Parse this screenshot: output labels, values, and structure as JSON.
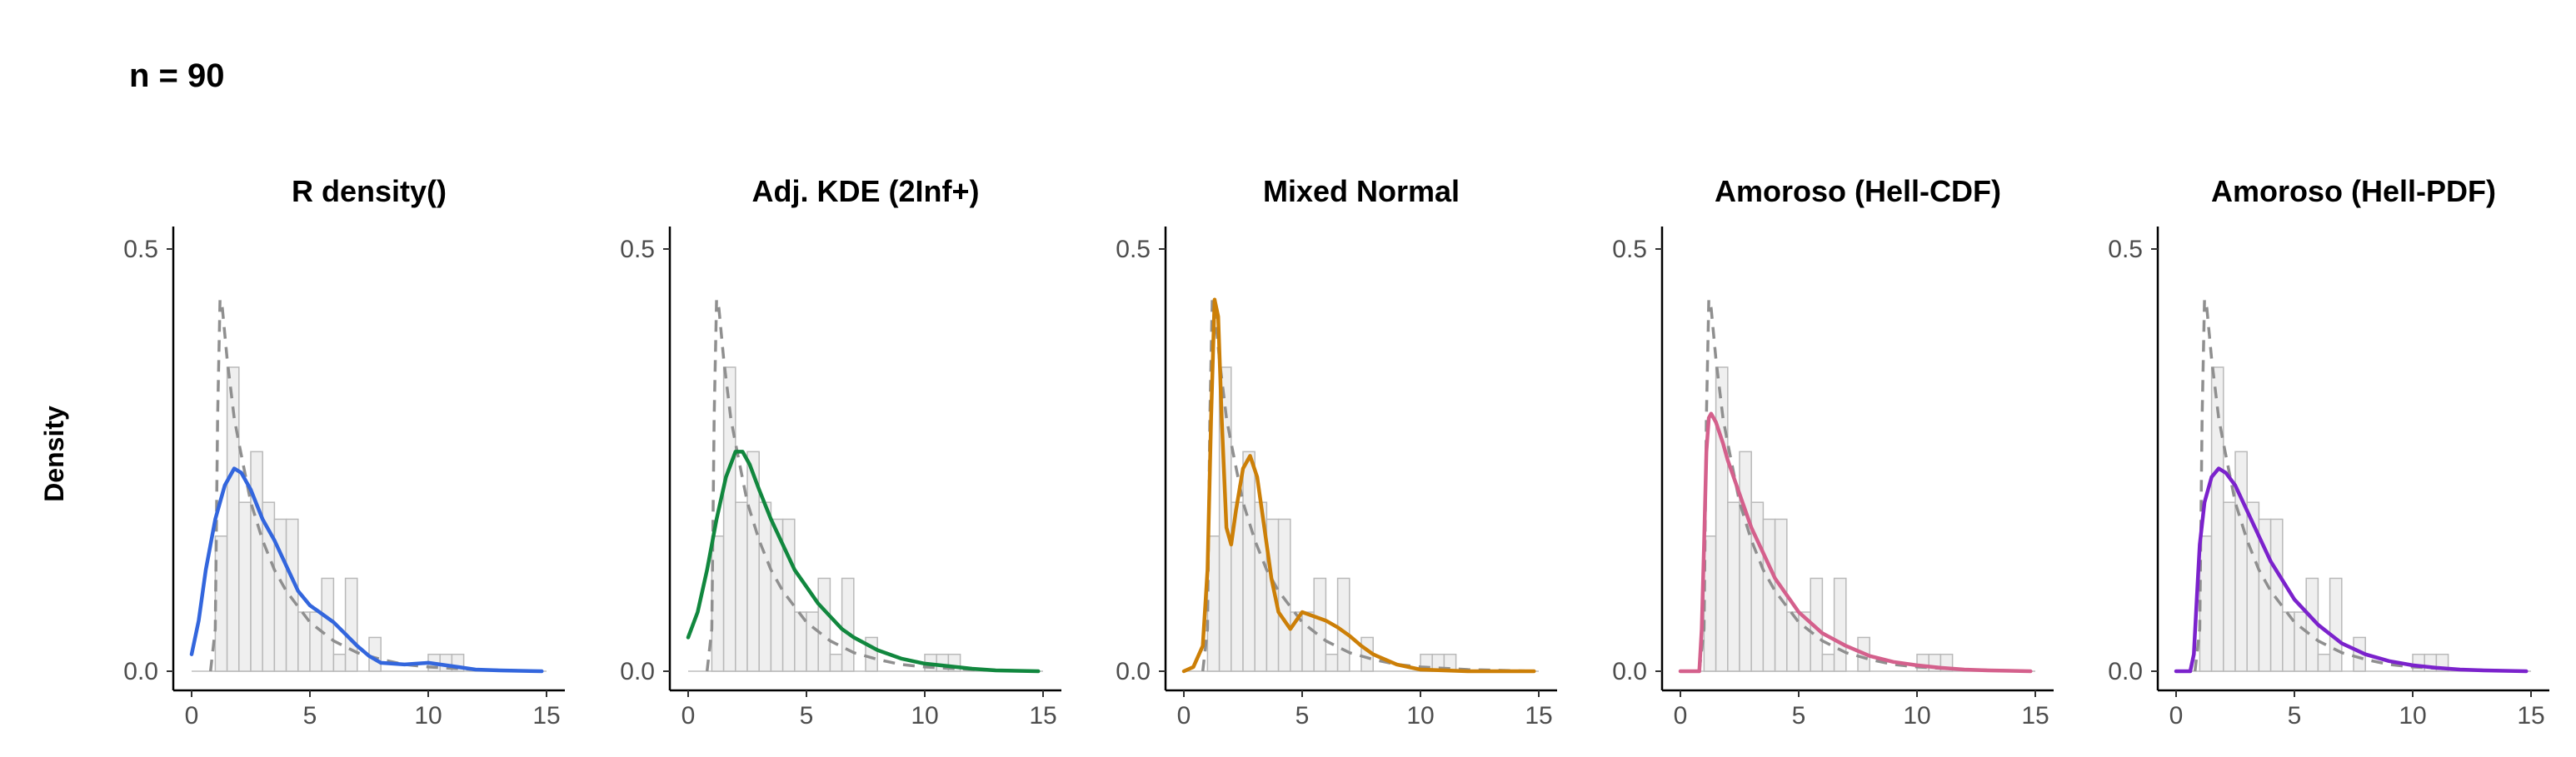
{
  "figure": {
    "title": "n = 90",
    "ylabel": "Density"
  },
  "chart_data": [
    {
      "type": "line",
      "title": "R density()",
      "color": "#3366dd",
      "curve": "rdensity",
      "xlim": [
        0,
        15
      ],
      "ylim": [
        0,
        0.5
      ],
      "xticks": [
        0,
        5,
        10,
        15
      ],
      "yticks": [
        0.0,
        0.5
      ],
      "ytick_labels": [
        "0.0",
        "0.5"
      ],
      "grid": false,
      "series": [
        {
          "kind": "histogram",
          "bin_width": 0.5,
          "bin_start": 1,
          "values": [
            0.16,
            0.36,
            0.2,
            0.26,
            0.2,
            0.18,
            0.18,
            0.07,
            0.07,
            0.11,
            0.02,
            0.11,
            0.0,
            0.04,
            0.0,
            0.0,
            0.0,
            0.0,
            0.02,
            0.02,
            0.02
          ]
        },
        {
          "kind": "true-density-dashed",
          "x": [
            0.8,
            1.0,
            1.1,
            1.2,
            1.3,
            1.5,
            1.8,
            2,
            2.5,
            3,
            3.5,
            4,
            5,
            6,
            7,
            8,
            9,
            10,
            12,
            14.8
          ],
          "y": [
            0,
            0.05,
            0.3,
            0.44,
            0.43,
            0.37,
            0.3,
            0.27,
            0.2,
            0.155,
            0.12,
            0.095,
            0.058,
            0.036,
            0.022,
            0.014,
            0.008,
            0.005,
            0.002,
            0.0
          ]
        },
        {
          "kind": "estimate",
          "x": [
            0,
            0.3,
            0.6,
            1,
            1.4,
            1.8,
            2.1,
            2.5,
            3,
            3.5,
            4,
            4.5,
            5,
            5.5,
            6,
            6.5,
            7,
            7.5,
            8,
            9,
            10,
            11,
            12,
            13,
            14.8
          ],
          "y": [
            0.02,
            0.06,
            0.12,
            0.18,
            0.22,
            0.24,
            0.235,
            0.215,
            0.18,
            0.155,
            0.125,
            0.095,
            0.078,
            0.068,
            0.058,
            0.044,
            0.03,
            0.018,
            0.01,
            0.008,
            0.01,
            0.006,
            0.002,
            0.001,
            0.0
          ]
        }
      ]
    },
    {
      "type": "line",
      "title": "Adj. KDE (2Inf+)",
      "color": "#11873e",
      "curve": "adjkde",
      "xlim": [
        0,
        15
      ],
      "ylim": [
        0,
        0.5
      ],
      "xticks": [
        0,
        5,
        10,
        15
      ],
      "yticks": [
        0.0,
        0.5
      ],
      "ytick_labels": [
        "0.0",
        "0.5"
      ],
      "grid": false,
      "series": [
        {
          "kind": "histogram",
          "bin_width": 0.5,
          "bin_start": 1,
          "values": [
            0.16,
            0.36,
            0.2,
            0.26,
            0.2,
            0.18,
            0.18,
            0.07,
            0.07,
            0.11,
            0.02,
            0.11,
            0.0,
            0.04,
            0.0,
            0.0,
            0.0,
            0.0,
            0.02,
            0.02,
            0.02
          ]
        },
        {
          "kind": "true-density-dashed",
          "x": [
            0.8,
            1.0,
            1.1,
            1.2,
            1.3,
            1.5,
            1.8,
            2,
            2.5,
            3,
            3.5,
            4,
            5,
            6,
            7,
            8,
            9,
            10,
            12,
            14.8
          ],
          "y": [
            0,
            0.05,
            0.3,
            0.44,
            0.43,
            0.37,
            0.3,
            0.27,
            0.2,
            0.155,
            0.12,
            0.095,
            0.058,
            0.036,
            0.022,
            0.014,
            0.008,
            0.005,
            0.002,
            0.0
          ]
        },
        {
          "kind": "estimate",
          "x": [
            0,
            0.4,
            0.8,
            1.2,
            1.6,
            2,
            2.3,
            2.6,
            3,
            3.5,
            4,
            4.5,
            5,
            5.5,
            6,
            6.5,
            7,
            8,
            9,
            10,
            11,
            12,
            13,
            14.8
          ],
          "y": [
            0.04,
            0.07,
            0.12,
            0.18,
            0.23,
            0.26,
            0.26,
            0.245,
            0.215,
            0.18,
            0.15,
            0.12,
            0.1,
            0.08,
            0.065,
            0.05,
            0.04,
            0.025,
            0.015,
            0.009,
            0.006,
            0.003,
            0.001,
            0.0
          ]
        }
      ]
    },
    {
      "type": "line",
      "title": "Mixed Normal",
      "color": "#cc7f07",
      "curve": "mixed",
      "xlim": [
        0,
        15
      ],
      "ylim": [
        0,
        0.5
      ],
      "xticks": [
        0,
        5,
        10,
        15
      ],
      "yticks": [
        0.0,
        0.5
      ],
      "ytick_labels": [
        "0.0",
        "0.5"
      ],
      "grid": false,
      "series": [
        {
          "kind": "histogram",
          "bin_width": 0.5,
          "bin_start": 1,
          "values": [
            0.16,
            0.36,
            0.2,
            0.26,
            0.2,
            0.18,
            0.18,
            0.07,
            0.07,
            0.11,
            0.02,
            0.11,
            0.0,
            0.04,
            0.0,
            0.0,
            0.0,
            0.0,
            0.02,
            0.02,
            0.02
          ]
        },
        {
          "kind": "true-density-dashed",
          "x": [
            0.8,
            1.0,
            1.1,
            1.2,
            1.3,
            1.5,
            1.8,
            2,
            2.5,
            3,
            3.5,
            4,
            5,
            6,
            7,
            8,
            9,
            10,
            12,
            14.8
          ],
          "y": [
            0,
            0.05,
            0.3,
            0.44,
            0.43,
            0.37,
            0.3,
            0.27,
            0.2,
            0.155,
            0.12,
            0.095,
            0.058,
            0.036,
            0.022,
            0.014,
            0.008,
            0.005,
            0.002,
            0.0
          ]
        },
        {
          "kind": "estimate",
          "x": [
            0,
            0.4,
            0.8,
            1.0,
            1.15,
            1.3,
            1.45,
            1.6,
            1.8,
            2.0,
            2.2,
            2.5,
            2.8,
            3.1,
            3.4,
            3.7,
            4,
            4.5,
            5,
            5.5,
            6,
            6.5,
            7,
            7.5,
            8,
            9,
            10,
            11,
            12,
            13,
            14.8
          ],
          "y": [
            0.0,
            0.005,
            0.03,
            0.12,
            0.3,
            0.44,
            0.42,
            0.3,
            0.17,
            0.15,
            0.19,
            0.24,
            0.255,
            0.23,
            0.17,
            0.11,
            0.07,
            0.05,
            0.07,
            0.065,
            0.06,
            0.052,
            0.042,
            0.03,
            0.02,
            0.008,
            0.002,
            0.001,
            0.0,
            0.0,
            0.0
          ]
        }
      ]
    },
    {
      "type": "line",
      "title": "Amoroso (Hell-CDF)",
      "color": "#d4608c",
      "curve": "hellcdf",
      "xlim": [
        0,
        15
      ],
      "ylim": [
        0,
        0.5
      ],
      "xticks": [
        0,
        5,
        10,
        15
      ],
      "yticks": [
        0.0,
        0.5
      ],
      "ytick_labels": [
        "0.0",
        "0.5"
      ],
      "grid": false,
      "series": [
        {
          "kind": "histogram",
          "bin_width": 0.5,
          "bin_start": 1,
          "values": [
            0.16,
            0.36,
            0.2,
            0.26,
            0.2,
            0.18,
            0.18,
            0.07,
            0.07,
            0.11,
            0.02,
            0.11,
            0.0,
            0.04,
            0.0,
            0.0,
            0.0,
            0.0,
            0.02,
            0.02,
            0.02
          ]
        },
        {
          "kind": "true-density-dashed",
          "x": [
            0.8,
            1.0,
            1.1,
            1.2,
            1.3,
            1.5,
            1.8,
            2,
            2.5,
            3,
            3.5,
            4,
            5,
            6,
            7,
            8,
            9,
            10,
            12,
            14.8
          ],
          "y": [
            0,
            0.05,
            0.3,
            0.44,
            0.43,
            0.37,
            0.3,
            0.27,
            0.2,
            0.155,
            0.12,
            0.095,
            0.058,
            0.036,
            0.022,
            0.014,
            0.008,
            0.005,
            0.002,
            0.0
          ]
        },
        {
          "kind": "estimate",
          "x": [
            0,
            0.8,
            0.9,
            1.0,
            1.1,
            1.2,
            1.3,
            1.5,
            1.8,
            2,
            2.5,
            3,
            3.5,
            4,
            5,
            6,
            7,
            8,
            9,
            10,
            11,
            12,
            13,
            14.8
          ],
          "y": [
            0,
            0,
            0.05,
            0.15,
            0.26,
            0.3,
            0.305,
            0.295,
            0.27,
            0.25,
            0.21,
            0.17,
            0.14,
            0.11,
            0.07,
            0.045,
            0.03,
            0.018,
            0.011,
            0.007,
            0.004,
            0.002,
            0.001,
            0.0
          ]
        }
      ]
    },
    {
      "type": "line",
      "title": "Amoroso (Hell-PDF)",
      "color": "#7b22cc",
      "curve": "hellpdf",
      "xlim": [
        0,
        15
      ],
      "ylim": [
        0,
        0.5
      ],
      "xticks": [
        0,
        5,
        10,
        15
      ],
      "yticks": [
        0.0,
        0.5
      ],
      "ytick_labels": [
        "0.0",
        "0.5"
      ],
      "grid": false,
      "series": [
        {
          "kind": "histogram",
          "bin_width": 0.5,
          "bin_start": 1,
          "values": [
            0.16,
            0.36,
            0.2,
            0.26,
            0.2,
            0.18,
            0.18,
            0.07,
            0.07,
            0.11,
            0.02,
            0.11,
            0.0,
            0.04,
            0.0,
            0.0,
            0.0,
            0.0,
            0.02,
            0.02,
            0.02
          ]
        },
        {
          "kind": "true-density-dashed",
          "x": [
            0.8,
            1.0,
            1.1,
            1.2,
            1.3,
            1.5,
            1.8,
            2,
            2.5,
            3,
            3.5,
            4,
            5,
            6,
            7,
            8,
            9,
            10,
            12,
            14.8
          ],
          "y": [
            0,
            0.05,
            0.3,
            0.44,
            0.43,
            0.37,
            0.3,
            0.27,
            0.2,
            0.155,
            0.12,
            0.095,
            0.058,
            0.036,
            0.022,
            0.014,
            0.008,
            0.005,
            0.002,
            0.0
          ]
        },
        {
          "kind": "estimate",
          "x": [
            0,
            0.6,
            0.75,
            0.9,
            1.0,
            1.2,
            1.5,
            1.8,
            2.1,
            2.5,
            3,
            3.5,
            4,
            5,
            6,
            7,
            8,
            9,
            10,
            11,
            12,
            13,
            14.8
          ],
          "y": [
            0,
            0,
            0.02,
            0.1,
            0.15,
            0.2,
            0.23,
            0.24,
            0.235,
            0.22,
            0.19,
            0.16,
            0.13,
            0.085,
            0.055,
            0.033,
            0.02,
            0.012,
            0.007,
            0.004,
            0.002,
            0.001,
            0.0
          ]
        }
      ]
    }
  ]
}
